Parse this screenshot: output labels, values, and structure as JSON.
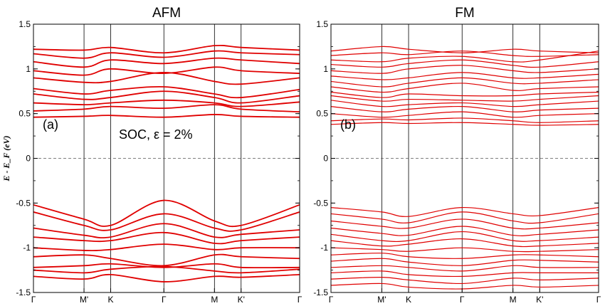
{
  "chart_data": [
    {
      "type": "line",
      "title": "AFM",
      "panel_label": "(a)",
      "annotation": "SOC, ε = 2%",
      "ylabel": "E - E_F (eV)",
      "xlabel": "",
      "ylim": [
        -1.5,
        1.5
      ],
      "yticks": [
        1.5,
        1,
        0.5,
        0,
        -0.5,
        -1,
        -1.5
      ],
      "ytick_labels": [
        "1.5",
        "1",
        "0.5",
        "0",
        "-0.5",
        "-1",
        "-1.5"
      ],
      "k_points": [
        {
          "label": "Γ",
          "k": 0
        },
        {
          "label": "M'",
          "k": 0.19
        },
        {
          "label": "K",
          "k": 0.29
        },
        {
          "label": "Γ",
          "k": 0.49
        },
        {
          "label": "M",
          "k": 0.68
        },
        {
          "label": "K'",
          "k": 0.78
        },
        {
          "label": "Γ",
          "k": 1
        }
      ],
      "fermi_level": 0,
      "line_color": "#e00000",
      "bands": [
        {
          "k": [
            0,
            0.19,
            0.29,
            0.49,
            0.68,
            0.78,
            1
          ],
          "energy": [
            1.22,
            1.21,
            1.24,
            1.18,
            1.26,
            1.24,
            1.21
          ]
        },
        {
          "k": [
            0,
            0.19,
            0.29,
            0.49,
            0.68,
            0.78,
            1
          ],
          "energy": [
            1.17,
            1.12,
            1.18,
            1.13,
            1.2,
            1.18,
            1.16
          ]
        },
        {
          "k": [
            0,
            0.19,
            0.29,
            0.49,
            0.68,
            0.78,
            1
          ],
          "energy": [
            1.08,
            1.02,
            1.1,
            1.06,
            1.12,
            1.1,
            1.06
          ]
        },
        {
          "k": [
            0,
            0.19,
            0.29,
            0.49,
            0.68,
            0.78,
            1
          ],
          "energy": [
            0.98,
            0.93,
            1.0,
            0.95,
            1.02,
            0.98,
            0.95
          ]
        },
        {
          "k": [
            0,
            0.19,
            0.29,
            0.49,
            0.68,
            0.78,
            1
          ],
          "energy": [
            0.9,
            0.85,
            0.86,
            0.96,
            0.86,
            0.83,
            0.9
          ]
        },
        {
          "k": [
            0,
            0.19,
            0.29,
            0.49,
            0.68,
            0.78,
            1
          ],
          "energy": [
            0.78,
            0.72,
            0.76,
            0.8,
            0.72,
            0.68,
            0.77
          ]
        },
        {
          "k": [
            0,
            0.19,
            0.29,
            0.49,
            0.68,
            0.78,
            1
          ],
          "energy": [
            0.72,
            0.66,
            0.68,
            0.75,
            0.68,
            0.62,
            0.7
          ]
        },
        {
          "k": [
            0,
            0.19,
            0.29,
            0.49,
            0.68,
            0.78,
            1
          ],
          "energy": [
            0.62,
            0.6,
            0.62,
            0.65,
            0.62,
            0.58,
            0.63
          ]
        },
        {
          "k": [
            0,
            0.19,
            0.29,
            0.49,
            0.68,
            0.78,
            1
          ],
          "energy": [
            0.53,
            0.55,
            0.58,
            0.56,
            0.6,
            0.55,
            0.52
          ]
        },
        {
          "k": [
            0,
            0.19,
            0.29,
            0.49,
            0.68,
            0.78,
            1
          ],
          "energy": [
            0.46,
            0.47,
            0.48,
            0.46,
            0.49,
            0.47,
            0.46
          ]
        },
        {
          "k": [
            0,
            0.19,
            0.29,
            0.49,
            0.68,
            0.78,
            1
          ],
          "energy": [
            -0.52,
            -0.68,
            -0.75,
            -0.47,
            -0.7,
            -0.75,
            -0.52
          ]
        },
        {
          "k": [
            0,
            0.19,
            0.29,
            0.49,
            0.68,
            0.78,
            1
          ],
          "energy": [
            -0.6,
            -0.75,
            -0.8,
            -0.62,
            -0.78,
            -0.8,
            -0.6
          ]
        },
        {
          "k": [
            0,
            0.19,
            0.29,
            0.49,
            0.68,
            0.78,
            1
          ],
          "energy": [
            -0.78,
            -0.86,
            -0.88,
            -0.73,
            -0.88,
            -0.85,
            -0.8
          ]
        },
        {
          "k": [
            0,
            0.19,
            0.29,
            0.49,
            0.68,
            0.78,
            1
          ],
          "energy": [
            -0.88,
            -0.92,
            -0.92,
            -0.83,
            -0.95,
            -0.92,
            -0.88
          ]
        },
        {
          "k": [
            0,
            0.19,
            0.29,
            0.49,
            0.68,
            0.78,
            1
          ],
          "energy": [
            -1.0,
            -1.03,
            -1.02,
            -0.96,
            -1.02,
            -1.0,
            -1.0
          ]
        },
        {
          "k": [
            0,
            0.19,
            0.29,
            0.49,
            0.68,
            0.78,
            1
          ],
          "energy": [
            -1.1,
            -1.08,
            -1.12,
            -1.2,
            -1.08,
            -1.1,
            -1.12
          ]
        },
        {
          "k": [
            0,
            0.19,
            0.29,
            0.49,
            0.68,
            0.78,
            1
          ],
          "energy": [
            -1.22,
            -1.2,
            -1.18,
            -1.22,
            -1.18,
            -1.22,
            -1.22
          ]
        },
        {
          "k": [
            0,
            0.19,
            0.29,
            0.49,
            0.68,
            0.78,
            1
          ],
          "energy": [
            -1.25,
            -1.28,
            -1.24,
            -1.21,
            -1.26,
            -1.28,
            -1.24
          ]
        },
        {
          "k": [
            0,
            0.19,
            0.29,
            0.49,
            0.68,
            0.78,
            1
          ],
          "energy": [
            -1.32,
            -1.35,
            -1.3,
            -1.38,
            -1.32,
            -1.33,
            -1.3
          ]
        }
      ]
    },
    {
      "type": "line",
      "title": "FM",
      "panel_label": "(b)",
      "xlabel": "",
      "ylabel": "",
      "ylim": [
        -1.5,
        1.5
      ],
      "yticks": [
        1.5,
        1,
        0.5,
        0,
        -0.5,
        -1,
        -1.5
      ],
      "ytick_labels": [
        "1.5",
        "1",
        "0.5",
        "0",
        "-0.5",
        "-1",
        "-1.5"
      ],
      "k_points": [
        {
          "label": "Γ",
          "k": 0
        },
        {
          "label": "M'",
          "k": 0.19
        },
        {
          "label": "K",
          "k": 0.29
        },
        {
          "label": "Γ",
          "k": 0.49
        },
        {
          "label": "M",
          "k": 0.68
        },
        {
          "label": "K'",
          "k": 0.78
        },
        {
          "label": "Γ",
          "k": 1
        }
      ],
      "fermi_level": 0,
      "line_color": "#e00000",
      "bands": [
        {
          "k": [
            0,
            0.19,
            0.29,
            0.49,
            0.68,
            0.78,
            1
          ],
          "energy": [
            1.2,
            1.25,
            1.22,
            1.18,
            1.22,
            1.2,
            1.18
          ]
        },
        {
          "k": [
            0,
            0.19,
            0.29,
            0.49,
            0.68,
            0.78,
            1
          ],
          "energy": [
            1.15,
            1.18,
            1.16,
            1.2,
            1.15,
            1.14,
            1.16
          ]
        },
        {
          "k": [
            0,
            0.19,
            0.29,
            0.49,
            0.68,
            0.78,
            1
          ],
          "energy": [
            1.1,
            1.08,
            1.12,
            1.14,
            1.08,
            1.1,
            1.2
          ]
        },
        {
          "k": [
            0,
            0.19,
            0.29,
            0.49,
            0.68,
            0.78,
            1
          ],
          "energy": [
            1.05,
            1.02,
            1.06,
            1.1,
            1.04,
            1.02,
            1.08
          ]
        },
        {
          "k": [
            0,
            0.19,
            0.29,
            0.49,
            0.68,
            0.78,
            1
          ],
          "energy": [
            0.98,
            0.95,
            1.0,
            1.04,
            0.98,
            0.96,
            1.0
          ]
        },
        {
          "k": [
            0,
            0.19,
            0.29,
            0.49,
            0.68,
            0.78,
            1
          ],
          "energy": [
            0.92,
            0.88,
            0.9,
            0.96,
            0.9,
            0.9,
            0.94
          ]
        },
        {
          "k": [
            0,
            0.19,
            0.29,
            0.49,
            0.68,
            0.78,
            1
          ],
          "energy": [
            0.86,
            0.8,
            0.84,
            0.9,
            0.84,
            0.84,
            0.88
          ]
        },
        {
          "k": [
            0,
            0.19,
            0.29,
            0.49,
            0.68,
            0.78,
            1
          ],
          "energy": [
            0.8,
            0.74,
            0.78,
            0.84,
            0.76,
            0.78,
            0.8
          ]
        },
        {
          "k": [
            0,
            0.19,
            0.29,
            0.49,
            0.68,
            0.78,
            1
          ],
          "energy": [
            0.74,
            0.68,
            0.72,
            0.7,
            0.7,
            0.72,
            0.74
          ]
        },
        {
          "k": [
            0,
            0.19,
            0.29,
            0.49,
            0.68,
            0.78,
            1
          ],
          "energy": [
            0.7,
            0.64,
            0.66,
            0.65,
            0.64,
            0.66,
            0.7
          ]
        },
        {
          "k": [
            0,
            0.19,
            0.29,
            0.49,
            0.68,
            0.78,
            1
          ],
          "energy": [
            0.65,
            0.58,
            0.6,
            0.62,
            0.58,
            0.6,
            0.64
          ]
        },
        {
          "k": [
            0,
            0.19,
            0.29,
            0.49,
            0.68,
            0.78,
            1
          ],
          "energy": [
            0.58,
            0.52,
            0.55,
            0.58,
            0.52,
            0.54,
            0.56
          ]
        },
        {
          "k": [
            0,
            0.19,
            0.29,
            0.49,
            0.68,
            0.78,
            1
          ],
          "energy": [
            0.5,
            0.46,
            0.48,
            0.52,
            0.46,
            0.48,
            0.5
          ]
        },
        {
          "k": [
            0,
            0.19,
            0.29,
            0.49,
            0.68,
            0.78,
            1
          ],
          "energy": [
            0.42,
            0.44,
            0.43,
            0.45,
            0.42,
            0.4,
            0.42
          ]
        },
        {
          "k": [
            0,
            0.19,
            0.29,
            0.49,
            0.68,
            0.78,
            1
          ],
          "energy": [
            0.38,
            0.4,
            0.39,
            0.4,
            0.38,
            0.37,
            0.38
          ]
        },
        {
          "k": [
            0,
            0.19,
            0.29,
            0.49,
            0.68,
            0.78,
            1
          ],
          "energy": [
            -0.55,
            -0.6,
            -0.65,
            -0.55,
            -0.62,
            -0.64,
            -0.55
          ]
        },
        {
          "k": [
            0,
            0.19,
            0.29,
            0.49,
            0.68,
            0.78,
            1
          ],
          "energy": [
            -0.62,
            -0.68,
            -0.72,
            -0.6,
            -0.7,
            -0.72,
            -0.62
          ]
        },
        {
          "k": [
            0,
            0.19,
            0.29,
            0.49,
            0.68,
            0.78,
            1
          ],
          "energy": [
            -0.7,
            -0.76,
            -0.78,
            -0.68,
            -0.78,
            -0.78,
            -0.72
          ]
        },
        {
          "k": [
            0,
            0.19,
            0.29,
            0.49,
            0.68,
            0.78,
            1
          ],
          "energy": [
            -0.78,
            -0.84,
            -0.86,
            -0.76,
            -0.86,
            -0.85,
            -0.8
          ]
        },
        {
          "k": [
            0,
            0.19,
            0.29,
            0.49,
            0.68,
            0.78,
            1
          ],
          "energy": [
            -0.85,
            -0.92,
            -0.92,
            -0.82,
            -0.92,
            -0.92,
            -0.88
          ]
        },
        {
          "k": [
            0,
            0.19,
            0.29,
            0.49,
            0.68,
            0.78,
            1
          ],
          "energy": [
            -0.92,
            -0.98,
            -0.96,
            -0.9,
            -0.98,
            -0.98,
            -0.95
          ]
        },
        {
          "k": [
            0,
            0.19,
            0.29,
            0.49,
            0.68,
            0.78,
            1
          ],
          "energy": [
            -1.0,
            -1.02,
            -1.04,
            -1.0,
            -1.04,
            -1.04,
            -1.02
          ]
        },
        {
          "k": [
            0,
            0.19,
            0.29,
            0.49,
            0.68,
            0.78,
            1
          ],
          "energy": [
            -1.08,
            -1.06,
            -1.1,
            -1.12,
            -1.08,
            -1.08,
            -1.1
          ]
        },
        {
          "k": [
            0,
            0.19,
            0.29,
            0.49,
            0.68,
            0.78,
            1
          ],
          "energy": [
            -1.15,
            -1.12,
            -1.16,
            -1.2,
            -1.14,
            -1.14,
            -1.16
          ]
        },
        {
          "k": [
            0,
            0.19,
            0.29,
            0.49,
            0.68,
            0.78,
            1
          ],
          "energy": [
            -1.22,
            -1.2,
            -1.22,
            -1.26,
            -1.2,
            -1.22,
            -1.22
          ]
        },
        {
          "k": [
            0,
            0.19,
            0.29,
            0.49,
            0.68,
            0.78,
            1
          ],
          "energy": [
            -1.28,
            -1.26,
            -1.3,
            -1.32,
            -1.28,
            -1.28,
            -1.28
          ]
        },
        {
          "k": [
            0,
            0.19,
            0.29,
            0.49,
            0.68,
            0.78,
            1
          ],
          "energy": [
            -1.35,
            -1.33,
            -1.36,
            -1.4,
            -1.34,
            -1.36,
            -1.34
          ]
        },
        {
          "k": [
            0,
            0.19,
            0.29,
            0.49,
            0.68,
            0.78,
            1
          ],
          "energy": [
            -1.42,
            -1.4,
            -1.44,
            -1.46,
            -1.42,
            -1.44,
            -1.42
          ]
        }
      ]
    }
  ]
}
